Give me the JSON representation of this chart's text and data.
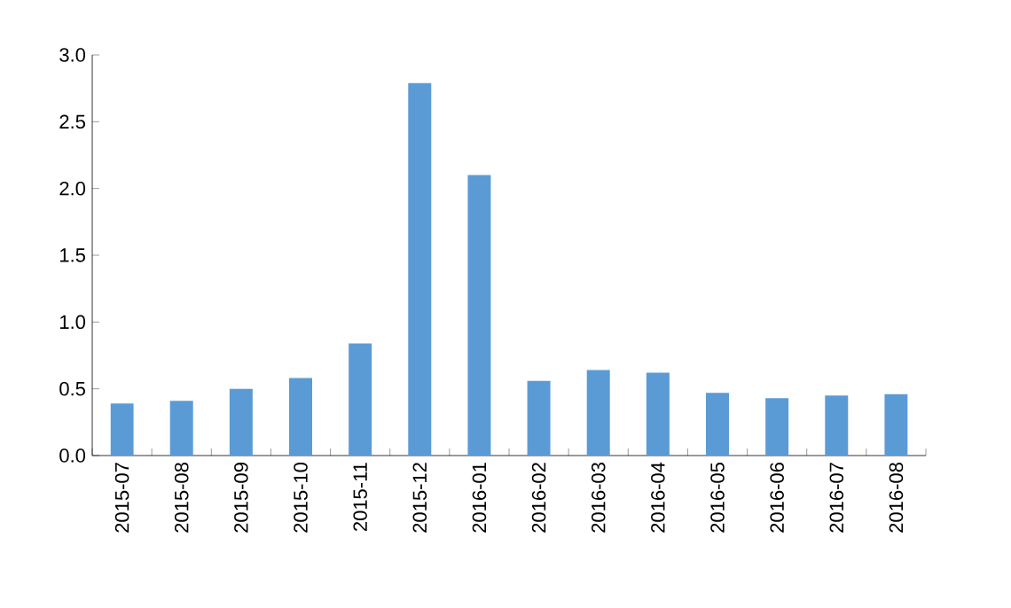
{
  "chart_data": {
    "type": "bar",
    "categories": [
      "2015-07",
      "2015-08",
      "2015-09",
      "2015-10",
      "2015-11",
      "2015-12",
      "2016-01",
      "2016-02",
      "2016-03",
      "2016-04",
      "2016-05",
      "2016-06",
      "2016-07",
      "2016-08"
    ],
    "values": [
      0.39,
      0.41,
      0.5,
      0.58,
      0.84,
      2.79,
      2.1,
      0.56,
      0.64,
      0.62,
      0.47,
      0.43,
      0.45,
      0.46
    ],
    "color": "#5b9bd5",
    "ylim": [
      0,
      3
    ],
    "yticks": [
      {
        "value": 0,
        "label": "0.0"
      },
      {
        "value": 0.5,
        "label": "0.5"
      },
      {
        "value": 1,
        "label": "1.0"
      },
      {
        "value": 1.5,
        "label": "1.5"
      },
      {
        "value": 2,
        "label": "2.0"
      },
      {
        "value": 2.5,
        "label": "2.5"
      },
      {
        "value": 3,
        "label": "3.0"
      }
    ],
    "grid": false
  }
}
